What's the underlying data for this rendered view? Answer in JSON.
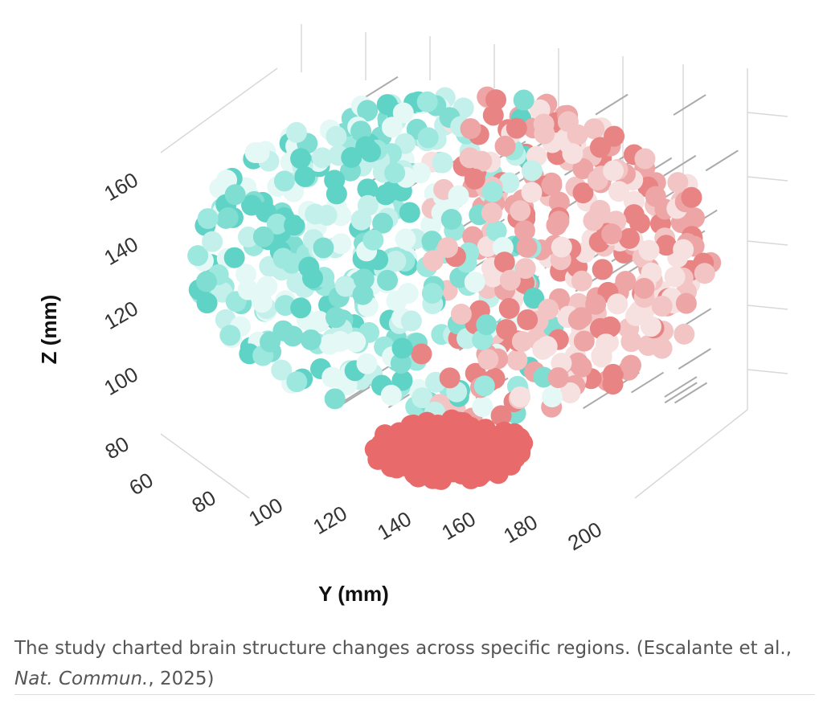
{
  "figure": {
    "z_axis": {
      "title": "Z (mm)",
      "ticks": [
        "160",
        "140",
        "120",
        "100",
        "80",
        "60"
      ]
    },
    "y_axis": {
      "title": "Y (mm)",
      "ticks": [
        "80",
        "100",
        "120",
        "140",
        "160",
        "180",
        "200"
      ]
    }
  },
  "caption": {
    "text": "The study charted brain structure changes across specific regions. (Escalante et al., ",
    "journal": "Nat. Commun.",
    "end": ", 2025)"
  }
}
